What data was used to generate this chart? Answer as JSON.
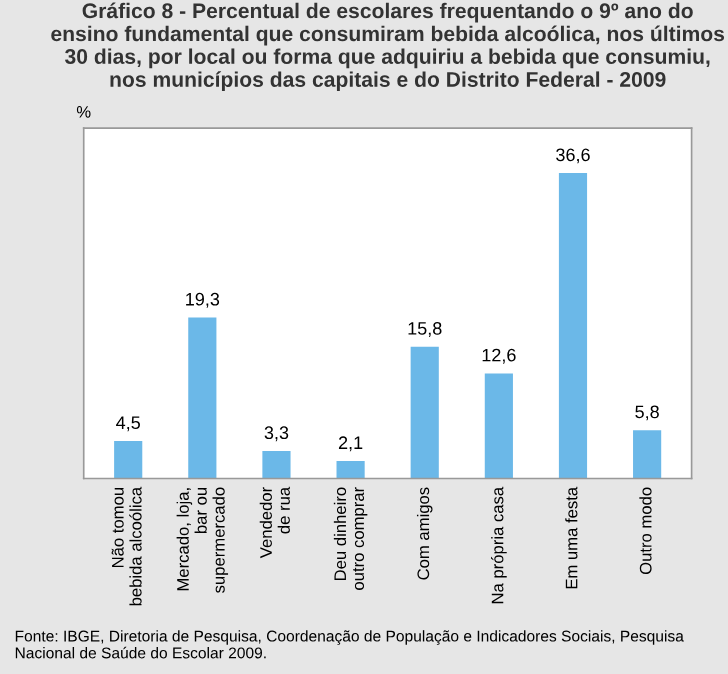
{
  "chart_data": {
    "type": "bar",
    "title": "Gráfico 8 - Percentual de escolares frequentando o 9º ano do ensino fundamental que consumiram bebida alcoólica, nos últimos 30 dias, por local ou forma que adquiriu a bebida que consumiu, nos municípios das capitais e do Distrito Federal - 2009",
    "ylabel": "%",
    "categories": [
      "Não tomou\nbebida alcoólica",
      "Mercado, loja,\nbar ou\nsupermercado",
      "Vendedor\nde rua",
      "Deu dinheiro\noutro comprar",
      "Com amigos",
      "Na própria casa",
      "Em uma festa",
      "Outro modo"
    ],
    "values": [
      4.5,
      19.3,
      3.3,
      2.1,
      15.8,
      12.6,
      36.6,
      5.8
    ],
    "color": "#6bb8e8",
    "value_labels": [
      "4,5",
      "19,3",
      "3,3",
      "2,1",
      "15,8",
      "12,6",
      "36,6",
      "5,8"
    ],
    "ylim": [
      0,
      42
    ],
    "tick_labels": "x",
    "grid": false,
    "annotations": [
      "Fonte: IBGE, Diretoria de Pesquisa, Coordenação de População e Indicadores Sociais, Pesquisa Nacional de Saúde do Escolar 2009."
    ]
  }
}
